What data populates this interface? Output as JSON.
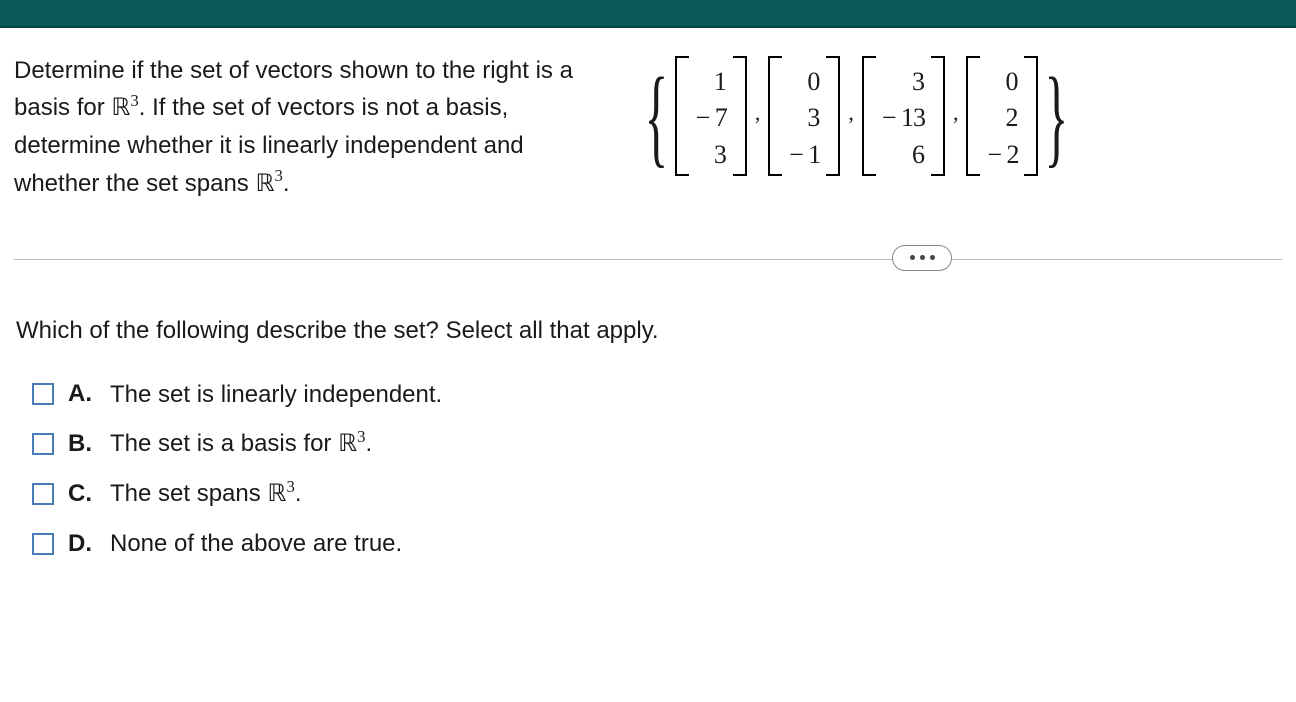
{
  "colors": {
    "top_bar": "#0a5a5a",
    "top_bar_border": "#064545",
    "text": "#1a1a1a",
    "divider": "#b8b8b8",
    "checkbox_border": "#4a7db5",
    "pill_border": "#8a8a8a",
    "background": "#ffffff"
  },
  "prompt": {
    "line1": "Determine if the set of vectors shown to the right is a",
    "line2a": "basis for ",
    "r_label": "ℝ",
    "r_exp": "3",
    "line2b": ". If the set of vectors is not a basis,",
    "line3": "determine whether it is linearly independent and",
    "line4a": "whether the set spans ",
    "line4b": "."
  },
  "vectors": [
    [
      "1",
      "− 7",
      "3"
    ],
    [
      "0",
      "3",
      "− 1"
    ],
    [
      "3",
      "− 13",
      "6"
    ],
    [
      "0",
      "2",
      "− 2"
    ]
  ],
  "comma": ",",
  "question": "Which of the following describe the set? Select all that apply.",
  "options": {
    "A": {
      "label": "A.",
      "text_pre": "The set is linearly independent."
    },
    "B": {
      "label": "B.",
      "text_pre": "The set is a basis for ",
      "has_r3": true,
      "text_post": "."
    },
    "C": {
      "label": "C.",
      "text_pre": "The set spans ",
      "has_r3": true,
      "text_post": "."
    },
    "D": {
      "label": "D.",
      "text_pre": "None of the above are true."
    }
  }
}
